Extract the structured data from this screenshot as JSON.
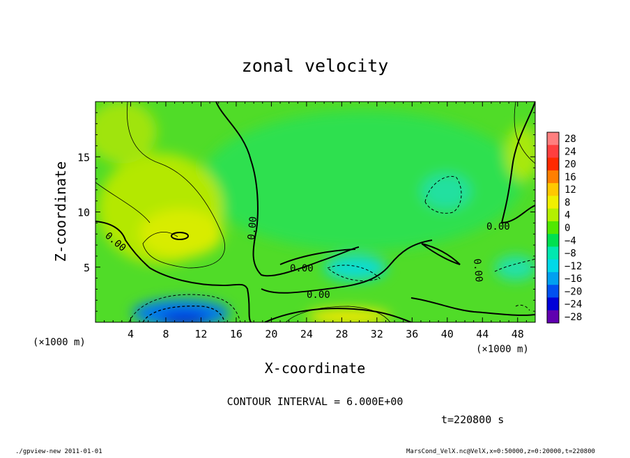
{
  "chart_data": {
    "type": "heatmap",
    "title": "zonal velocity",
    "xlabel": "X-coordinate",
    "ylabel": "Z-coordinate",
    "x_unit_label": "(×1000 m)",
    "y_unit_label": "(×1000 m)",
    "xlim": [
      0,
      50
    ],
    "ylim": [
      0,
      20
    ],
    "x_ticks": [
      4,
      8,
      12,
      16,
      20,
      24,
      28,
      32,
      36,
      40,
      44,
      48
    ],
    "y_ticks": [
      5,
      10,
      15
    ],
    "colorbar": {
      "levels": [
        28,
        24,
        20,
        16,
        12,
        8,
        4,
        0,
        -4,
        -8,
        -12,
        -16,
        -20,
        -24,
        -28
      ],
      "labels": [
        "28",
        "24",
        "20",
        "16",
        "12",
        "8",
        "4",
        "0",
        "−4",
        "−8",
        "−12",
        "−16",
        "−20",
        "−24",
        "−28"
      ],
      "colors": [
        "#ff7f7f",
        "#ff3f3f",
        "#ff2a00",
        "#ff7f00",
        "#ffc800",
        "#f0f000",
        "#b4f000",
        "#50e800",
        "#00e050",
        "#00e8b0",
        "#00d8e8",
        "#00a0f0",
        "#0050f0",
        "#0000d8",
        "#6000b0"
      ]
    },
    "contour_labels": [
      "0.00",
      "0.00",
      "0.00",
      "0.00",
      "0.00",
      "0.00"
    ],
    "contour_interval_text": "CONTOUR INTERVAL = 6.000E+00",
    "time_text": "t=220800 s",
    "grid": false
  },
  "footer": {
    "left": "./gpview-new  2011-01-01",
    "right": "MarsCond_VelX.nc@VelX,x=0:50000,z=0:20000,t=220800"
  }
}
